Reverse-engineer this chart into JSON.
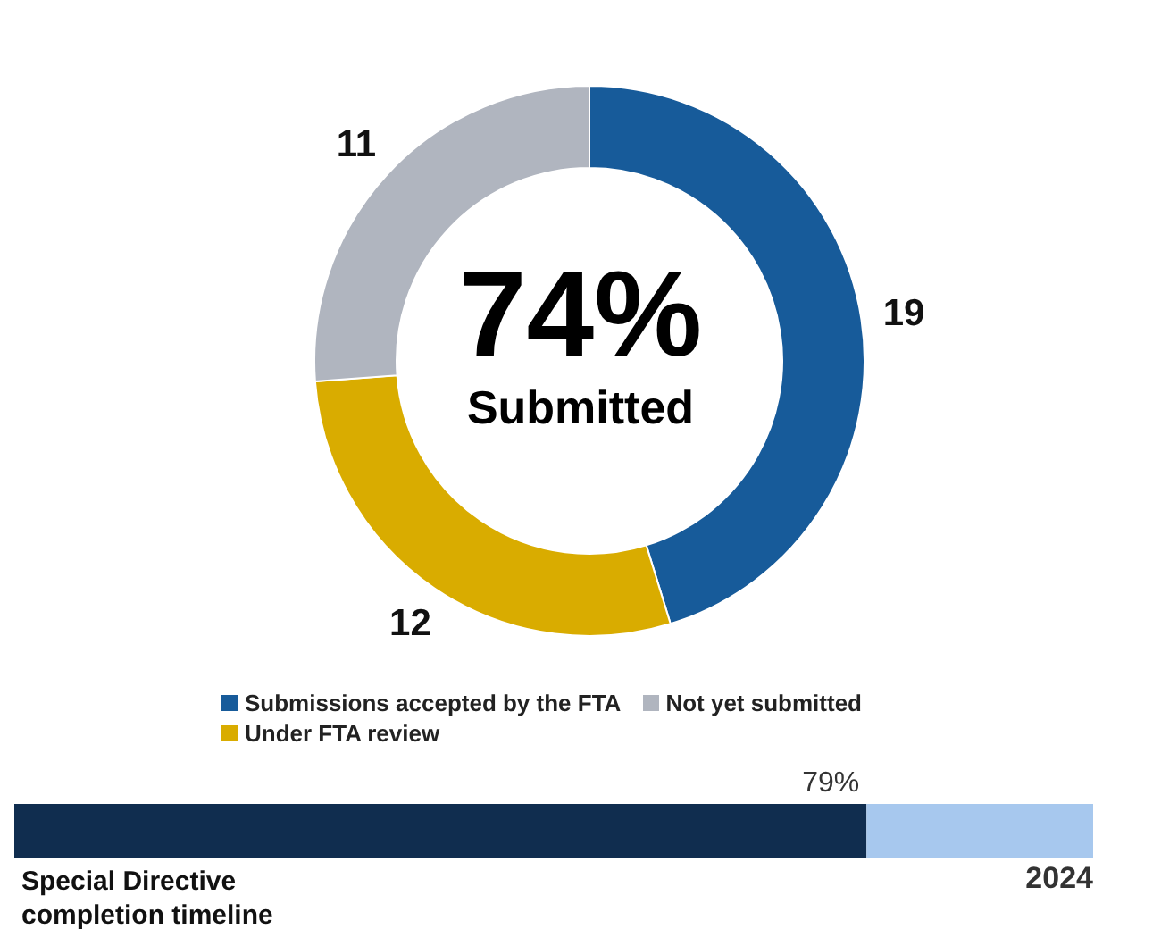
{
  "chart_data": [
    {
      "type": "donut",
      "title": "74%",
      "subtitle": "Submitted",
      "categories": [
        "Submissions accepted by the FTA",
        "Under FTA review",
        "Not yet submitted"
      ],
      "values": [
        19,
        12,
        11
      ],
      "colors": [
        "#175b9a",
        "#d9ac00",
        "#b0b5bf"
      ],
      "data_labels": true,
      "legend": "bottom"
    },
    {
      "type": "bar",
      "orientation": "horizontal",
      "stacked": true,
      "categories": [
        null
      ],
      "xlim": [
        0,
        100
      ],
      "tick_labels": false,
      "series": [
        {
          "color": "#102d4f",
          "values": [
            79
          ],
          "value_labels": [
            "79%"
          ]
        },
        {
          "color": "#a7c8ee",
          "values": [
            21
          ]
        }
      ],
      "annotations": [
        "Special Directive completion timeline",
        "2024"
      ]
    }
  ]
}
